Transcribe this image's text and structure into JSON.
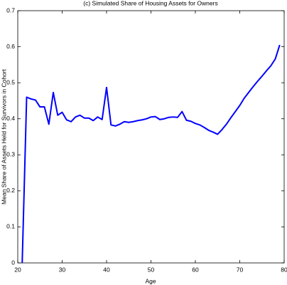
{
  "chart_data": {
    "type": "line",
    "title": "(c) Simulated Share of Housing Assets for Owners",
    "x_label": "Age",
    "y_label": "Mean Share of Assets Held for Survivors in Cohort",
    "x": [
      21,
      22,
      23,
      24,
      25,
      26,
      27,
      28,
      29,
      30,
      31,
      32,
      33,
      34,
      35,
      36,
      37,
      38,
      39,
      40,
      41,
      42,
      43,
      44,
      45,
      46,
      47,
      48,
      49,
      50,
      51,
      52,
      53,
      54,
      55,
      56,
      57,
      58,
      59,
      60,
      61,
      62,
      63,
      64,
      65,
      66,
      67,
      68,
      69,
      70,
      71,
      72,
      73,
      74,
      75,
      76,
      77,
      78,
      79
    ],
    "series": [
      {
        "color": "#0000ff",
        "values": [
          0,
          0.46,
          0.455,
          0.452,
          0.433,
          0.433,
          0.385,
          0.473,
          0.41,
          0.418,
          0.397,
          0.392,
          0.405,
          0.41,
          0.402,
          0.402,
          0.395,
          0.405,
          0.398,
          0.487,
          0.383,
          0.38,
          0.385,
          0.392,
          0.39,
          0.392,
          0.395,
          0.397,
          0.4,
          0.405,
          0.406,
          0.398,
          0.4,
          0.404,
          0.405,
          0.404,
          0.42,
          0.396,
          0.393,
          0.387,
          0.383,
          0.376,
          0.368,
          0.363,
          0.357,
          0.37,
          0.385,
          0.403,
          0.42,
          0.437,
          0.457,
          0.473,
          0.489,
          0.504,
          0.518,
          0.533,
          0.547,
          0.566,
          0.605
        ]
      }
    ],
    "xlim": [
      20,
      80
    ],
    "xticks": [
      20,
      30,
      40,
      50,
      60,
      70,
      80
    ],
    "ylim": [
      0,
      0.7
    ],
    "yticks": [
      0,
      0.1,
      0.2,
      0.3,
      0.4,
      0.5,
      0.6,
      0.7
    ]
  }
}
